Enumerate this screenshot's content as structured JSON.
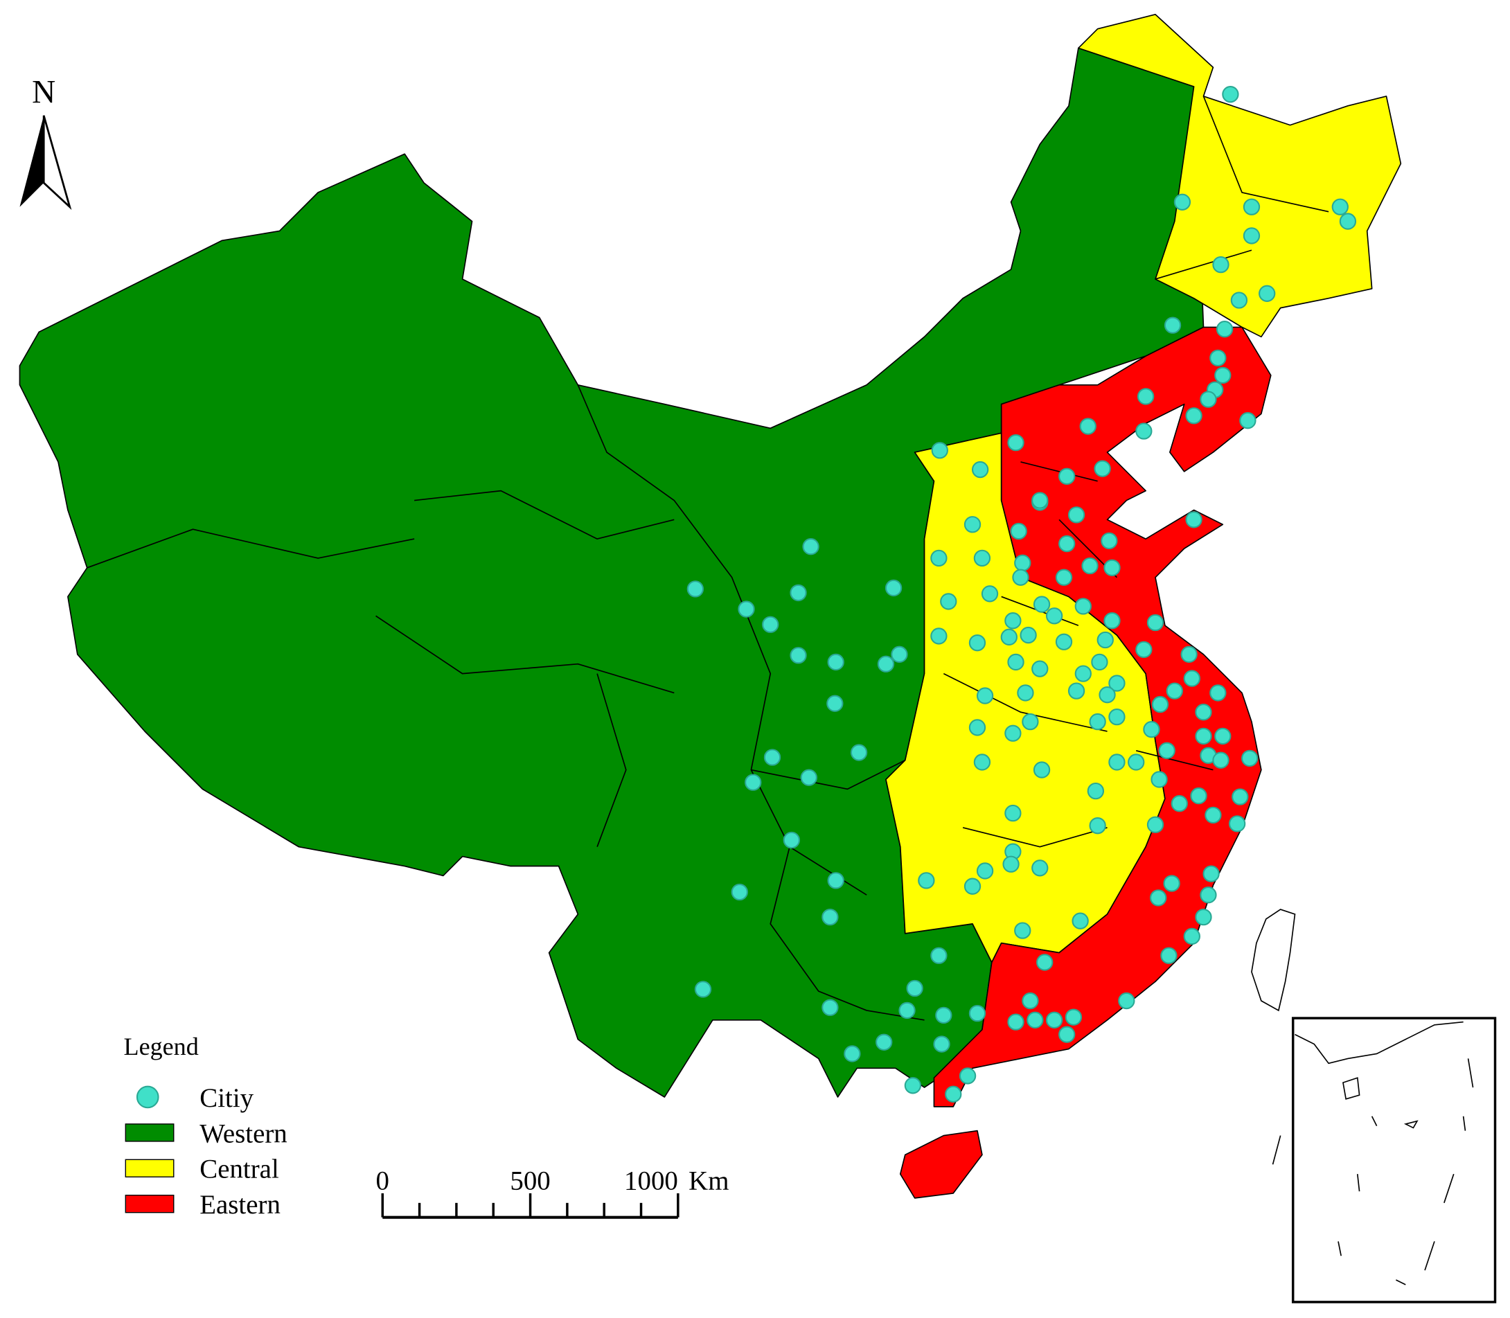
{
  "north_arrow": {
    "label": "N"
  },
  "legend": {
    "title": "Legend",
    "items": [
      {
        "label": "Citiy",
        "color": "#40e0c8"
      },
      {
        "label": "Western",
        "color": "#008c00"
      },
      {
        "label": "Central",
        "color": "#ffff00"
      },
      {
        "label": "Eastern",
        "color": "#ff0000"
      }
    ]
  },
  "scale_bar": {
    "labels": [
      "0",
      "500",
      "1000"
    ],
    "unit": "Km"
  }
}
